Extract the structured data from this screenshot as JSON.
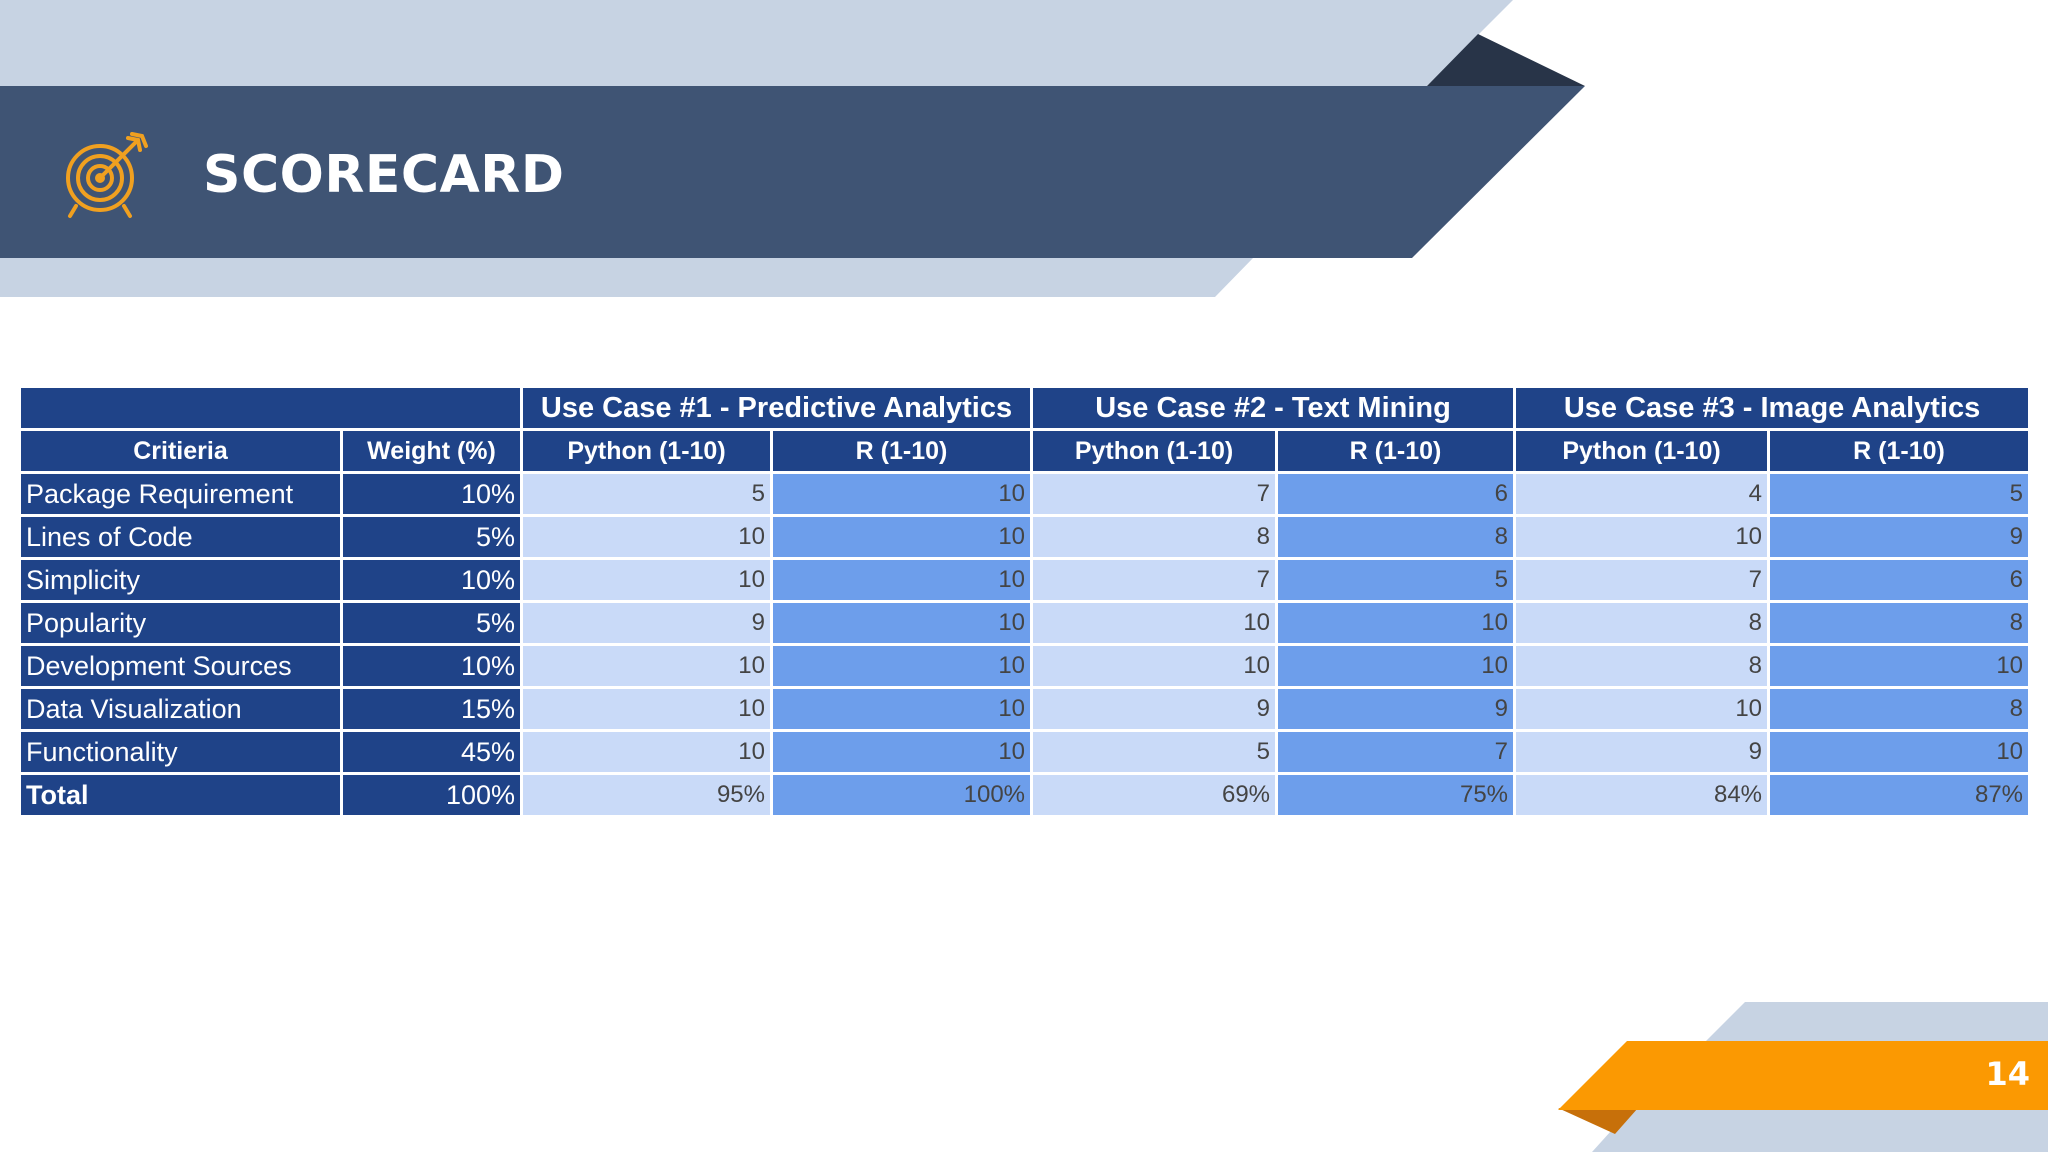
{
  "header": {
    "title": "SCORECARD",
    "icon": "target-icon"
  },
  "page_number": "14",
  "colors": {
    "header_band": "#3f5474",
    "light_band": "#c7d3e3",
    "dark_accent": "#283448",
    "orange": "#fb9902",
    "dark_orange": "#c7700a",
    "table_dark": "#1f4388",
    "python_cell": "#c9daf8",
    "r_cell": "#6d9eeb"
  },
  "table": {
    "use_cases": [
      "Use Case #1 - Predictive Analytics",
      "Use Case #2 - Text Mining",
      "Use Case #3 - Image Analytics"
    ],
    "col_criteria": "Critieria",
    "col_weight": "Weight (%)",
    "col_python": "Python (1-10)",
    "col_r": "R (1-10)",
    "rows": [
      {
        "criteria": "Package Requirement",
        "weight": "10%",
        "scores": [
          "5",
          "10",
          "7",
          "6",
          "4",
          "5"
        ]
      },
      {
        "criteria": "Lines of Code",
        "weight": "5%",
        "scores": [
          "10",
          "10",
          "8",
          "8",
          "10",
          "9"
        ]
      },
      {
        "criteria": "Simplicity",
        "weight": "10%",
        "scores": [
          "10",
          "10",
          "7",
          "5",
          "7",
          "6"
        ]
      },
      {
        "criteria": "Popularity",
        "weight": "5%",
        "scores": [
          "9",
          "10",
          "10",
          "10",
          "8",
          "8"
        ]
      },
      {
        "criteria": "Development Sources",
        "weight": "10%",
        "scores": [
          "10",
          "10",
          "10",
          "10",
          "8",
          "10"
        ]
      },
      {
        "criteria": "Data Visualization",
        "weight": "15%",
        "scores": [
          "10",
          "10",
          "9",
          "9",
          "10",
          "8"
        ]
      },
      {
        "criteria": "Functionality",
        "weight": "45%",
        "scores": [
          "10",
          "10",
          "5",
          "7",
          "9",
          "10"
        ]
      }
    ],
    "total": {
      "criteria": "Total",
      "weight": "100%",
      "scores": [
        "95%",
        "100%",
        "69%",
        "75%",
        "84%",
        "87%"
      ]
    }
  }
}
